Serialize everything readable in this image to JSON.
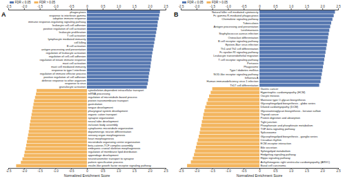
{
  "chart_data": [
    {
      "type": "bar",
      "title": "A",
      "orientation": "horizontal",
      "xlabel": "Normalized Enrichment Score",
      "legend": "top left",
      "categories": [
        "phagocytosis",
        "response to interferon gamma",
        "adaptive immune response",
        "immune response-regulating signaling pathway",
        "leukocyte cell-cell adhesion",
        "positive regulation of cell activation",
        "leukocyte proliferation",
        "T cell activation",
        "lymphocyte mediated immunity",
        "cell killing",
        "B cell activation",
        "antigen processing and presentation",
        "regulation of leukocyte activation",
        "regulation of cell-cell adhesion",
        "regulation of innate immune response",
        "mast cell activation",
        "mast cell mediated immunity",
        "response to type I interferon",
        "regulation of immune effector process",
        "positive regulation of cell adhesion",
        "defense response to other organism",
        "response to virus",
        "granulocyte activation",
        "cytoskeleton-dependent intracellular transport",
        "mRNA processing",
        "regulation of microtubule-based process",
        "protein transmembrane transport",
        "gastrulation",
        "tongue development",
        "pharyngeal system development",
        "organic cation transport",
        "synapse organization",
        "neural tube development",
        "inclusion body assembly",
        "cytoplasmic microtubule organization",
        "dopaminergic neuron differentiation",
        "sensory organ morphogenesis",
        "heart morphogenesis",
        "microtubule organizing center organization",
        "beta-catenin-TCF complex assembly",
        "embryonic cranial skeleton morphogenesis",
        "regulation of membrane lipid distribution",
        "appendage development",
        "neurotransmitter transport to synapse",
        "pattern specification process",
        "insulin-like growth factor receptor signaling pathway"
      ],
      "series": [
        {
          "name": "FDR ≤ 0.05",
          "color": "#5677b0",
          "values": [
            2.32,
            2.3,
            2.28,
            2.25,
            2.24,
            2.22,
            2.2,
            2.18,
            2.16,
            2.14,
            2.12,
            2.1,
            2.08,
            2.06,
            2.05,
            2.03,
            2.02,
            2.0,
            1.98,
            1.96,
            1.95,
            1.93,
            1.9,
            null,
            null,
            null,
            null,
            null,
            null,
            null,
            null,
            null,
            null,
            null,
            null,
            null,
            null,
            null,
            null,
            null,
            null,
            null,
            null,
            null,
            null,
            null
          ]
        },
        {
          "name": "FDR > 0.05",
          "color": "#f3b55e",
          "values": [
            null,
            null,
            null,
            null,
            null,
            null,
            null,
            null,
            null,
            null,
            null,
            null,
            null,
            null,
            null,
            null,
            null,
            null,
            null,
            null,
            null,
            null,
            null,
            -1.6,
            -1.62,
            -1.65,
            -1.68,
            -1.7,
            -1.72,
            -1.74,
            -1.76,
            -1.78,
            -1.8,
            -1.82,
            -1.83,
            -1.85,
            -1.87,
            -1.89,
            -1.91,
            -1.93,
            -1.95,
            -1.98,
            -2.0,
            -2.05,
            -2.1,
            -2.25
          ]
        }
      ],
      "xlim": [
        -2.5,
        2.5
      ],
      "xticks": [
        -2.5,
        {
          "value": -2,
          "label": "-2.0"
        },
        -1.5,
        {
          "value": -1,
          "label": "-1.0"
        },
        -0.5,
        0,
        0.5,
        {
          "value": 1,
          "label": "1.0"
        },
        1.5,
        {
          "value": 2,
          "label": "2.0"
        },
        2.5
      ]
    },
    {
      "type": "bar",
      "title": "B",
      "orientation": "horizontal",
      "xlabel": "Normalized Enrichment Score",
      "legend": "top left",
      "categories": [
        "Natural killer cell mediated cytotoxicity",
        "Fc gamma R-mediated phagocytosis",
        "Chemokine signaling pathway",
        "Tuberculosis",
        "Antigen processing and presentation",
        "Leishmaniasis",
        "Staphylococcus aureus infection",
        "Osteoclast differentiation",
        "B cell receptor signaling pathway",
        "Epstein-Barr virus infection",
        "Th1 and Th2 cell differentiation",
        "Fc epsilon RI signaling pathway",
        "Leukocyte transendothelial migration",
        "T cell receptor signaling pathway",
        "Pertussis",
        "Phagosome",
        "Type I diabetes mellitus",
        "NOD-like receptor signaling pathway",
        "Influenza A",
        "Human immunodeficiency virus 1 infection",
        "Th17 cell differentiation",
        "Gastric cancer",
        "Hypertrophic cardiomyopathy (HCM)",
        "Oocyte meiosis",
        "Mannose type O-glycan biosynthesis",
        "Glycosphingolipid biosynthesis - globo series",
        "Dilated cardiomyopathy (DCM)",
        "Glycosaminoglycan biosynthesis - keratan sulfate",
        "Thyroid cancer",
        "Protein digestion and absorption",
        "Tight junction",
        "Phosphonate and phosphinate metabolism",
        "TGF-beta signaling pathway",
        "Spliceosome",
        "Glycosphingolipid biosynthesis - ganglio series",
        "Circadian rhythm",
        "ECM-receptor interaction",
        "Bile secretion",
        "Sphingolipid metabolism",
        "Hedgehog signaling pathway",
        "Hippo signaling pathway",
        "Arrhythmogenic right ventricular cardiomyopathy (ARVC)",
        "Basal cell carcinoma"
      ],
      "series": [
        {
          "name": "FDR ≤ 0.05",
          "color": "#5677b0",
          "values": [
            2.4,
            2.36,
            2.32,
            2.28,
            2.25,
            2.22,
            2.2,
            2.18,
            2.16,
            2.14,
            2.12,
            2.1,
            2.08,
            2.06,
            2.04,
            2.02,
            2.0,
            1.98,
            1.96,
            1.94,
            1.9,
            null,
            null,
            null,
            null,
            null,
            null,
            null,
            null,
            null,
            null,
            null,
            null,
            null,
            null,
            null,
            null,
            null,
            null,
            null,
            null,
            null,
            null
          ]
        },
        {
          "name": "FDR > 0.05",
          "color": "#f3b55e",
          "values": [
            null,
            null,
            null,
            null,
            null,
            null,
            null,
            null,
            null,
            null,
            null,
            null,
            null,
            null,
            null,
            null,
            null,
            null,
            null,
            null,
            null,
            -1.5,
            -1.55,
            -1.6,
            -1.64,
            -1.68,
            -1.72,
            -1.75,
            -1.78,
            -1.8,
            -1.83,
            -1.85,
            -1.88,
            -1.9,
            -1.93,
            -1.96,
            -1.99,
            -2.02,
            -2.05,
            -2.08,
            -2.12,
            -2.18,
            -2.3
          ]
        }
      ],
      "xlim": [
        -2.5,
        2.5
      ],
      "xticks": [
        -2.5,
        {
          "value": -2,
          "label": "-2.0"
        },
        -1.5,
        {
          "value": -1,
          "label": "-1.0"
        },
        -0.5,
        0,
        0.5,
        {
          "value": 1,
          "label": "1.0"
        },
        1.5,
        {
          "value": 2,
          "label": "2.0"
        },
        2.5
      ]
    }
  ]
}
